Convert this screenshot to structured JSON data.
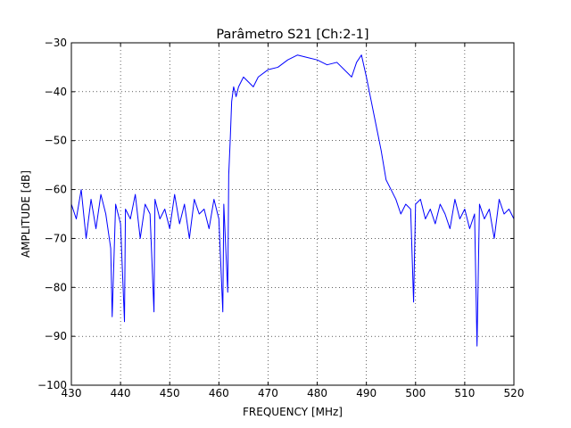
{
  "chart_data": {
    "type": "line",
    "title": "Parâmetro S21 [Ch:2-1]",
    "xlabel": "FREQUENCY [MHz]",
    "ylabel": "AMPLITUDE [dB]",
    "xlim": [
      430,
      520
    ],
    "ylim": [
      -100,
      -30
    ],
    "xticks": [
      430,
      440,
      450,
      460,
      470,
      480,
      490,
      500,
      510,
      520
    ],
    "yticks": [
      -100,
      -90,
      -80,
      -70,
      -60,
      -50,
      -40,
      -30
    ],
    "xtick_labels": [
      "430",
      "440",
      "450",
      "460",
      "470",
      "480",
      "490",
      "500",
      "510",
      "520"
    ],
    "ytick_labels": [
      "−100",
      "−90",
      "−80",
      "−70",
      "−60",
      "−50",
      "−40",
      "−30"
    ],
    "grid": true,
    "grid_style": "dotted",
    "series_color": "#0000ff",
    "series": [
      {
        "x": [
          430,
          431,
          432,
          433,
          434,
          435,
          436,
          437,
          438,
          438.3,
          439,
          440,
          440.8,
          441,
          442,
          443,
          444,
          445,
          446,
          446.8,
          447,
          448,
          449,
          450,
          451,
          452,
          453,
          454,
          455,
          456,
          457,
          458,
          459,
          460,
          460.8,
          461,
          461.8,
          462,
          462.3,
          462.6,
          463,
          463.5,
          464,
          465,
          466,
          467,
          468,
          470,
          472,
          474,
          476,
          478,
          480,
          482,
          484,
          486,
          487,
          488,
          489,
          490,
          491,
          492,
          493,
          494,
          495,
          496,
          497,
          498,
          499,
          499.6,
          500,
          501,
          502,
          503,
          504,
          505,
          506,
          507,
          508,
          509,
          510,
          511,
          512,
          512.5,
          513,
          514,
          515,
          516,
          517,
          518,
          519,
          520
        ],
        "y": [
          -63,
          -66,
          -60,
          -70,
          -62,
          -68,
          -61,
          -65,
          -72,
          -86,
          -63,
          -67,
          -87,
          -64,
          -66,
          -61,
          -70,
          -63,
          -65,
          -85,
          -62,
          -66,
          -64,
          -68,
          -61,
          -67,
          -63,
          -70,
          -62,
          -65,
          -64,
          -68,
          -62,
          -66,
          -85,
          -63,
          -81,
          -57,
          -50,
          -42,
          -39,
          -41,
          -39,
          -37,
          -38,
          -39,
          -37,
          -35.5,
          -35,
          -33.5,
          -32.5,
          -33,
          -33.5,
          -34.5,
          -34,
          -36,
          -37,
          -34,
          -32.5,
          -37,
          -42,
          -47,
          -52,
          -58,
          -60,
          -62,
          -65,
          -63,
          -64,
          -83,
          -63,
          -62,
          -66,
          -64,
          -67,
          -63,
          -65,
          -68,
          -62,
          -66,
          -64,
          -68,
          -65,
          -92,
          -63,
          -66,
          -64,
          -70,
          -62,
          -65,
          -64,
          -66
        ]
      }
    ]
  }
}
